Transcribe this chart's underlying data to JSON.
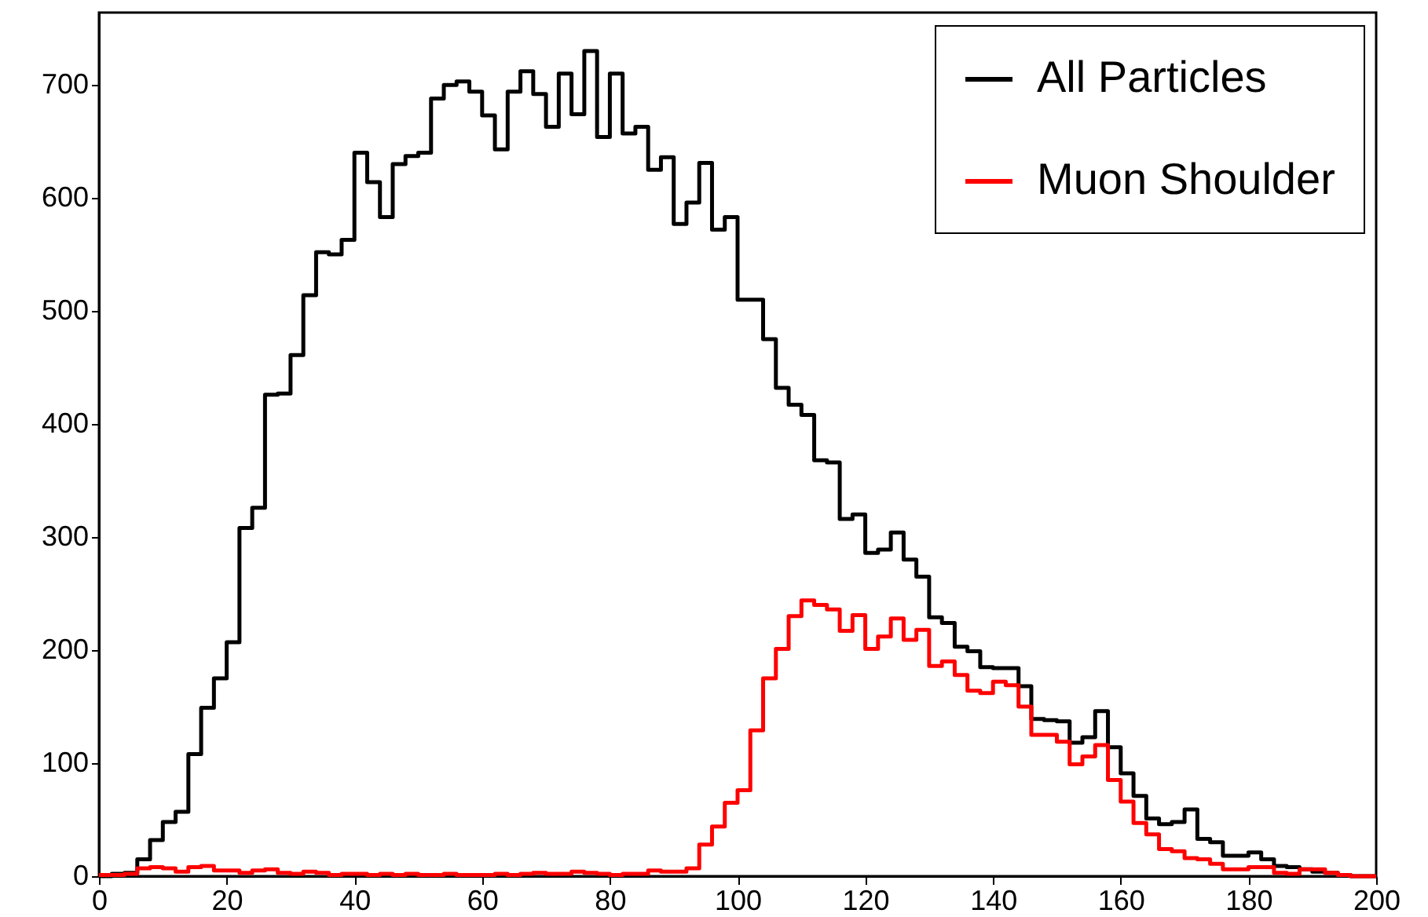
{
  "chart_data": {
    "type": "histogram",
    "bins": [
      0,
      2,
      4,
      6,
      8,
      10,
      12,
      14,
      16,
      18,
      20,
      22,
      24,
      26,
      28,
      30,
      32,
      34,
      36,
      38,
      40,
      42,
      44,
      46,
      48,
      50,
      52,
      54,
      56,
      58,
      60,
      62,
      64,
      66,
      68,
      70,
      72,
      74,
      76,
      78,
      80,
      82,
      84,
      86,
      88,
      90,
      92,
      94,
      96,
      98,
      100,
      102,
      104,
      106,
      108,
      110,
      112,
      114,
      116,
      118,
      120,
      122,
      124,
      126,
      128,
      130,
      132,
      134,
      136,
      138,
      140,
      142,
      144,
      146,
      148,
      150,
      152,
      154,
      156,
      158,
      160,
      162,
      164,
      166,
      168,
      170,
      172,
      174,
      176,
      178,
      180,
      182,
      184,
      186,
      188,
      190,
      192,
      194,
      196,
      198,
      200
    ],
    "series": [
      {
        "name": "All Particles",
        "color": "#000000",
        "values": [
          0,
          2,
          3,
          15,
          32,
          48,
          57,
          108,
          149,
          175,
          207,
          308,
          326,
          426,
          427,
          461,
          514,
          552,
          550,
          563,
          640,
          614,
          583,
          630,
          637,
          640,
          688,
          700,
          703,
          694,
          673,
          643,
          694,
          712,
          692,
          663,
          710,
          674,
          730,
          654,
          710,
          657,
          663,
          625,
          636,
          577,
          596,
          631,
          572,
          583,
          510,
          510,
          475,
          432,
          417,
          408,
          368,
          366,
          316,
          320,
          286,
          289,
          304,
          280,
          265,
          229,
          224,
          203,
          199,
          185,
          184,
          184,
          168,
          139,
          138,
          137,
          118,
          123,
          146,
          114,
          91,
          71,
          51,
          46,
          48,
          59,
          33,
          30,
          18,
          18,
          21,
          15,
          9,
          8,
          6,
          4,
          3,
          1,
          0,
          0
        ]
      },
      {
        "name": "Muon Shoulder",
        "color": "#ff0000",
        "values": [
          1,
          1,
          2,
          7,
          8,
          7,
          4,
          8,
          9,
          5,
          5,
          3,
          5,
          6,
          3,
          2,
          4,
          3,
          1,
          2,
          2,
          1,
          2,
          1,
          2,
          1,
          1,
          2,
          1,
          1,
          1,
          2,
          1,
          2,
          3,
          2,
          2,
          4,
          3,
          2,
          1,
          2,
          2,
          5,
          4,
          4,
          7,
          28,
          44,
          65,
          76,
          129,
          175,
          201,
          230,
          244,
          240,
          236,
          217,
          231,
          201,
          212,
          228,
          209,
          218,
          186,
          190,
          178,
          164,
          162,
          172,
          169,
          150,
          125,
          125,
          119,
          99,
          106,
          116,
          85,
          66,
          47,
          37,
          24,
          22,
          16,
          15,
          11,
          6,
          6,
          8,
          8,
          3,
          2,
          6,
          6,
          3,
          1,
          0,
          0
        ]
      }
    ],
    "xlim": [
      0,
      200
    ],
    "xticks": [
      0,
      20,
      40,
      60,
      80,
      100,
      120,
      140,
      160,
      180,
      200
    ],
    "ylim": [
      0,
      764
    ],
    "yticks": [
      0,
      100,
      200,
      300,
      400,
      500,
      600,
      700
    ],
    "grid": false,
    "legend": "top right"
  }
}
